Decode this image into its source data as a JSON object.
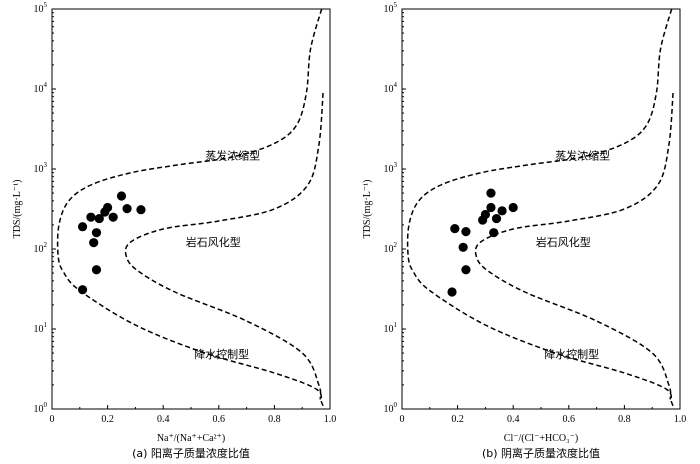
{
  "chart_data": [
    {
      "type": "scatter",
      "title": "",
      "caption": "(a) 阳离子质量浓度比值",
      "xlabel": "Na⁺/(Na⁺+Ca²⁺)",
      "ylabel": "TDS/(mg·L⁻¹)",
      "xlim": [
        0,
        1.0
      ],
      "ylim": [
        1,
        100000
      ],
      "yscale": "log",
      "x_ticks": [
        "0",
        "0.2",
        "0.4",
        "0.6",
        "0.8",
        "1.0"
      ],
      "y_ticks": [
        {
          "base": "10",
          "exp": "0"
        },
        {
          "base": "10",
          "exp": "1"
        },
        {
          "base": "10",
          "exp": "2"
        },
        {
          "base": "10",
          "exp": "3"
        },
        {
          "base": "10",
          "exp": "4"
        },
        {
          "base": "10",
          "exp": "5"
        }
      ],
      "regions": [
        "蒸发浓缩型",
        "岩石风化型",
        "降水控制型"
      ],
      "points": [
        {
          "x": 0.11,
          "y": 190
        },
        {
          "x": 0.14,
          "y": 250
        },
        {
          "x": 0.15,
          "y": 120
        },
        {
          "x": 0.16,
          "y": 160
        },
        {
          "x": 0.17,
          "y": 240
        },
        {
          "x": 0.19,
          "y": 290
        },
        {
          "x": 0.2,
          "y": 330
        },
        {
          "x": 0.22,
          "y": 250
        },
        {
          "x": 0.25,
          "y": 460
        },
        {
          "x": 0.27,
          "y": 320
        },
        {
          "x": 0.32,
          "y": 310
        },
        {
          "x": 0.16,
          "y": 55
        },
        {
          "x": 0.11,
          "y": 31
        }
      ]
    },
    {
      "type": "scatter",
      "title": "",
      "caption": "(b) 阴离子质量浓度比值",
      "xlabel": "Cl⁻/(Cl⁻+HCO₃⁻)",
      "ylabel": "TDS/(mg·L⁻¹)",
      "xlim": [
        0,
        1.0
      ],
      "ylim": [
        1,
        100000
      ],
      "yscale": "log",
      "x_ticks": [
        "0",
        "0.2",
        "0.4",
        "0.6",
        "0.8",
        "1.0"
      ],
      "y_ticks": [
        {
          "base": "10",
          "exp": "0"
        },
        {
          "base": "10",
          "exp": "1"
        },
        {
          "base": "10",
          "exp": "2"
        },
        {
          "base": "10",
          "exp": "3"
        },
        {
          "base": "10",
          "exp": "4"
        },
        {
          "base": "10",
          "exp": "5"
        }
      ],
      "regions": [
        "蒸发浓缩型",
        "岩石风化型",
        "降水控制型"
      ],
      "points": [
        {
          "x": 0.19,
          "y": 180
        },
        {
          "x": 0.22,
          "y": 105
        },
        {
          "x": 0.23,
          "y": 165
        },
        {
          "x": 0.23,
          "y": 55
        },
        {
          "x": 0.29,
          "y": 230
        },
        {
          "x": 0.3,
          "y": 270
        },
        {
          "x": 0.32,
          "y": 330
        },
        {
          "x": 0.32,
          "y": 500
        },
        {
          "x": 0.33,
          "y": 160
        },
        {
          "x": 0.34,
          "y": 240
        },
        {
          "x": 0.36,
          "y": 300
        },
        {
          "x": 0.4,
          "y": 330
        },
        {
          "x": 0.18,
          "y": 29
        }
      ]
    }
  ]
}
